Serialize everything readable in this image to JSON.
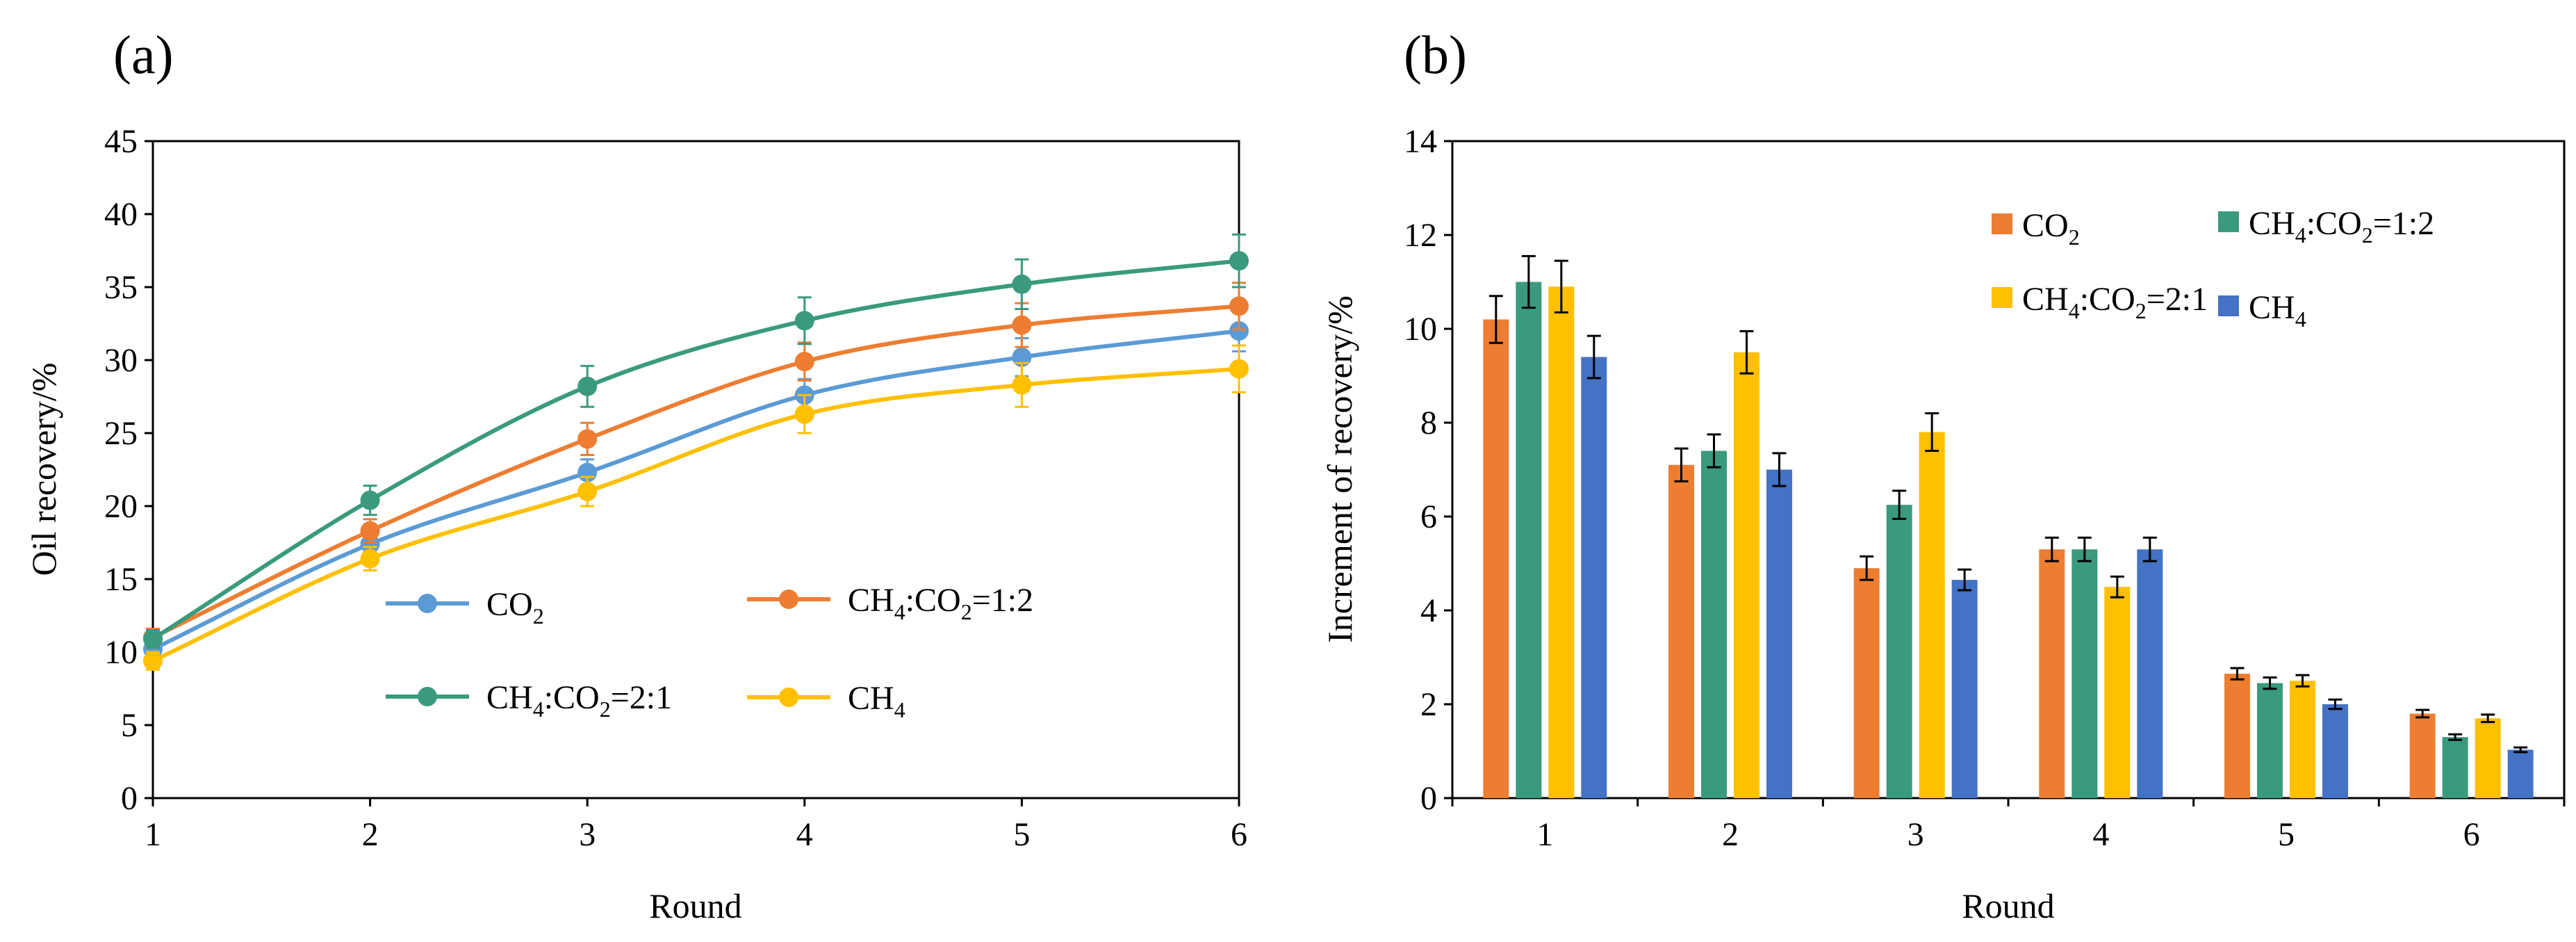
{
  "chart_data": [
    {
      "panel_label": "(a)",
      "type": "line",
      "xlabel": "Round",
      "ylabel": "Oil recovery/%",
      "x": [
        1,
        2,
        3,
        4,
        5,
        6
      ],
      "xlim": [
        1,
        6
      ],
      "ylim": [
        0,
        45
      ],
      "yticks": [
        0,
        5,
        10,
        15,
        20,
        25,
        30,
        35,
        40,
        45
      ],
      "grid": false,
      "legend_position": "lower-center",
      "series": [
        {
          "name": "CO2",
          "color": "#5B9BD5",
          "values": [
            10.2,
            17.4,
            22.3,
            27.6,
            30.2,
            32.0
          ],
          "errors": [
            0.6,
            0.8,
            0.9,
            1.1,
            1.3,
            1.4
          ]
        },
        {
          "name": "CH4:CO2=1:2",
          "color": "#ED7D31",
          "values": [
            11.0,
            18.3,
            24.6,
            29.9,
            32.4,
            33.7
          ],
          "errors": [
            0.6,
            0.8,
            1.1,
            1.3,
            1.5,
            1.6
          ]
        },
        {
          "name": "CH4:CO2=2:1",
          "color": "#3A9A7E",
          "values": [
            10.9,
            20.4,
            28.2,
            32.7,
            35.2,
            36.8
          ],
          "errors": [
            0.6,
            1.0,
            1.4,
            1.6,
            1.7,
            1.8
          ]
        },
        {
          "name": "CH4",
          "color": "#FFC000",
          "values": [
            9.4,
            16.4,
            21.0,
            26.3,
            28.3,
            29.4
          ],
          "errors": [
            0.6,
            0.8,
            1.0,
            1.3,
            1.5,
            1.6
          ]
        }
      ]
    },
    {
      "panel_label": "(b)",
      "type": "bar",
      "xlabel": "Round",
      "ylabel": "Increment of recovery/%",
      "categories": [
        "1",
        "2",
        "3",
        "4",
        "5",
        "6"
      ],
      "ylim": [
        0,
        14
      ],
      "yticks": [
        0,
        2,
        4,
        6,
        8,
        10,
        12,
        14
      ],
      "grid": false,
      "legend_position": "top-right",
      "series": [
        {
          "name": "CO2",
          "color": "#ED7D31",
          "values": [
            10.2,
            7.1,
            4.9,
            5.3,
            2.65,
            1.8
          ],
          "errors": [
            0.5,
            0.35,
            0.25,
            0.25,
            0.12,
            0.08
          ]
        },
        {
          "name": "CH4:CO2=1:2",
          "color": "#3A9A7E",
          "values": [
            11.0,
            7.4,
            6.25,
            5.3,
            2.45,
            1.3
          ],
          "errors": [
            0.55,
            0.35,
            0.3,
            0.25,
            0.12,
            0.06
          ]
        },
        {
          "name": "CH4:CO2=2:1",
          "color": "#FFC000",
          "values": [
            10.9,
            9.5,
            7.8,
            4.5,
            2.5,
            1.7
          ],
          "errors": [
            0.55,
            0.45,
            0.4,
            0.22,
            0.12,
            0.08
          ]
        },
        {
          "name": "CH4",
          "color": "#4472C4",
          "values": [
            9.4,
            7.0,
            4.65,
            5.3,
            2.0,
            1.03
          ],
          "errors": [
            0.45,
            0.35,
            0.22,
            0.25,
            0.1,
            0.05
          ]
        }
      ]
    }
  ]
}
